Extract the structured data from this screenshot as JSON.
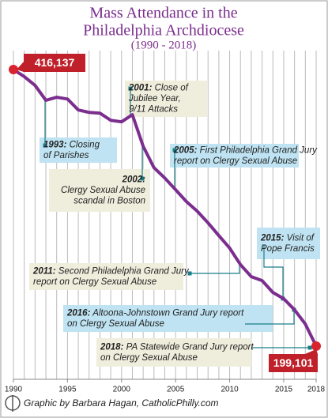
{
  "chart_data": {
    "type": "line",
    "title": [
      "Mass Attendance in the",
      "Philadelphia Archdiocese"
    ],
    "subtitle": "(1990 - 2018)",
    "source": "Graphic by Barbara Hagan, CatholicPhilly.com",
    "x": [
      1990,
      1991,
      1992,
      1993,
      1994,
      1995,
      1996,
      1997,
      1998,
      1999,
      2000,
      2001,
      2002,
      2003,
      2004,
      2005,
      2006,
      2007,
      2008,
      2009,
      2010,
      2011,
      2012,
      2013,
      2014,
      2015,
      2016,
      2017,
      2018
    ],
    "series": [
      {
        "color": "#7b2e8e",
        "values": [
          416137,
          410600,
          403700,
          392000,
          394400,
          393000,
          384400,
          382500,
          381900,
          376300,
          375100,
          380700,
          355900,
          339100,
          331000,
          321800,
          312500,
          305000,
          295800,
          285800,
          276000,
          263000,
          253600,
          250500,
          241200,
          236300,
          227600,
          216400,
          199101
        ],
        "value_labels": [
          "416,137",
          null,
          null,
          null,
          null,
          null,
          null,
          null,
          null,
          null,
          null,
          null,
          null,
          null,
          null,
          null,
          null,
          null,
          null,
          null,
          null,
          null,
          null,
          null,
          null,
          null,
          null,
          null,
          "199,101"
        ]
      }
    ],
    "xlim": [
      1990,
      2018
    ],
    "xticks": [
      1990,
      1995,
      2000,
      2005,
      2010,
      2015,
      2018
    ],
    "grid": true,
    "annotations": [
      {
        "label": "1993:",
        "lines": [
          "Closing",
          "of Parishes"
        ]
      },
      {
        "label": "2001:",
        "lines": [
          "Close of",
          "Jubilee Year,",
          "9/11 Attacks"
        ]
      },
      {
        "label": "2002:",
        "lines": [
          "Clergy Sexual Abuse",
          "scandal in Boston"
        ]
      },
      {
        "label": "2005:",
        "lines": [
          "First Philadelphia Grand Jury",
          "report on Clergy Sexual Abuse"
        ]
      },
      {
        "label": "2011:",
        "lines": [
          "Second Philadelphia Grand Jury",
          "report on Clergy Sexual Abuse"
        ]
      },
      {
        "label": "2015:",
        "lines": [
          "Visit of",
          "Pope Francis"
        ]
      },
      {
        "label": "2016:",
        "lines": [
          "Altoona-Johnstown Grand Jury report",
          "on Clergy Sexual Abuse"
        ]
      },
      {
        "label": "2018:",
        "lines": [
          "PA Statewide Grand Jury report",
          "on Clergy Sexual Abuse"
        ]
      }
    ]
  }
}
